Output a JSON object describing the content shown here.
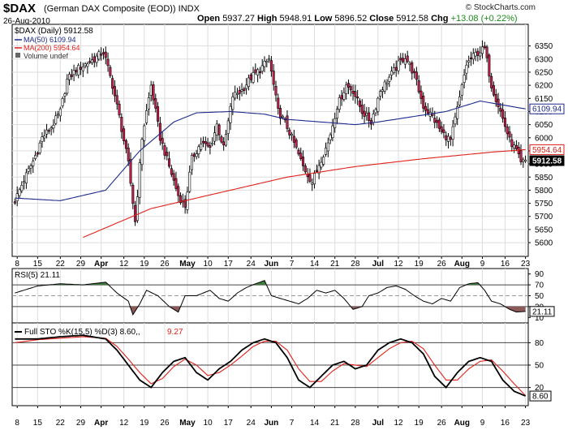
{
  "header": {
    "symbol": "$DAX",
    "name": "(German DAX Composite (EOD))",
    "exchange": "INDX",
    "date": "26-Aug-2010",
    "open_label": "Open",
    "open": "5937.27",
    "high_label": "High",
    "high": "5948.91",
    "low_label": "Low",
    "low": "5896.52",
    "close_label": "Close",
    "close": "5912.58",
    "chg_label": "Chg",
    "chg": "+13.08 (+0.22%)",
    "credit": "© StockCharts.com"
  },
  "colors": {
    "up": "#ffffff",
    "down": "#cc1f4f",
    "ma50": "#1c2a8c",
    "ma200": "#e0201a",
    "rsi_over": "#3f7a3f",
    "rsi_under": "#8c5a58",
    "sto_k": "#000000",
    "sto_d": "#e0201a",
    "grid": "#dddddd"
  },
  "chart_data": [
    {
      "type": "candlestick",
      "title": "$DAX (Daily) 5912.58",
      "legend": [
        {
          "name": "MA(50)",
          "value": "6109.94"
        },
        {
          "name": "MA(200)",
          "value": "5954.64"
        },
        {
          "name": "Volume",
          "value": "undef"
        }
      ],
      "ylim": [
        5560,
        6420
      ],
      "y_ticks": [
        5600,
        5650,
        5700,
        5750,
        5800,
        5850,
        5900,
        5950,
        6000,
        6050,
        6100,
        6150,
        6200,
        6250,
        6300,
        6350
      ],
      "price_tags": [
        {
          "value": 6109.94,
          "label": "6109.94"
        },
        {
          "value": 5954.64,
          "label": "5954.64"
        },
        {
          "value": 5912.58,
          "label": "5912.58"
        }
      ],
      "x_ticks": [
        "8",
        "15",
        "22",
        "29",
        "Apr",
        "12",
        "19",
        "26",
        "May",
        "10",
        "17",
        "24",
        "Jun",
        "7",
        "14",
        "21",
        "28",
        "Jul",
        "12",
        "19",
        "26",
        "Aug",
        "9",
        "16",
        "23"
      ],
      "x_tick_dates": [
        "2010-03-08",
        "2010-03-15",
        "2010-03-22",
        "2010-03-29",
        "2010-04-05",
        "2010-04-12",
        "2010-04-19",
        "2010-04-26",
        "2010-05-03",
        "2010-05-10",
        "2010-05-17",
        "2010-05-24",
        "2010-05-31",
        "2010-06-07",
        "2010-06-14",
        "2010-06-21",
        "2010-06-28",
        "2010-07-05",
        "2010-07-12",
        "2010-07-19",
        "2010-07-26",
        "2010-08-02",
        "2010-08-09",
        "2010-08-16",
        "2010-08-23"
      ],
      "close_path": [
        [
          0,
          5760
        ],
        [
          4,
          5840
        ],
        [
          8,
          5910
        ],
        [
          12,
          6000
        ],
        [
          16,
          6040
        ],
        [
          20,
          6100
        ],
        [
          23,
          6220
        ],
        [
          27,
          6260
        ],
        [
          31,
          6280
        ],
        [
          35,
          6300
        ],
        [
          39,
          6330
        ],
        [
          43,
          6200
        ],
        [
          46,
          6080
        ],
        [
          50,
          5900
        ],
        [
          53,
          5680
        ],
        [
          56,
          6000
        ],
        [
          60,
          6200
        ],
        [
          64,
          6000
        ],
        [
          68,
          5890
        ],
        [
          72,
          5780
        ],
        [
          75,
          5740
        ],
        [
          78,
          5920
        ],
        [
          82,
          5980
        ],
        [
          86,
          5960
        ],
        [
          89,
          6050
        ],
        [
          92,
          5960
        ],
        [
          96,
          6160
        ],
        [
          100,
          6180
        ],
        [
          104,
          6230
        ],
        [
          108,
          6260
        ],
        [
          112,
          6300
        ],
        [
          116,
          6100
        ],
        [
          119,
          6060
        ],
        [
          123,
          5980
        ],
        [
          127,
          5890
        ],
        [
          131,
          5830
        ],
        [
          134,
          5900
        ],
        [
          138,
          5980
        ],
        [
          142,
          6120
        ],
        [
          146,
          6200
        ],
        [
          149,
          6180
        ],
        [
          153,
          6100
        ],
        [
          157,
          6060
        ],
        [
          161,
          6180
        ],
        [
          165,
          6230
        ],
        [
          169,
          6280
        ],
        [
          172,
          6310
        ],
        [
          176,
          6240
        ],
        [
          180,
          6120
        ],
        [
          184,
          6080
        ],
        [
          188,
          6020
        ],
        [
          192,
          5990
        ],
        [
          196,
          6150
        ],
        [
          199,
          6280
        ],
        [
          203,
          6320
        ],
        [
          207,
          6340
        ],
        [
          210,
          6200
        ],
        [
          214,
          6100
        ],
        [
          218,
          5990
        ],
        [
          221,
          5950
        ],
        [
          223,
          5900
        ],
        [
          225,
          5912.58
        ]
      ],
      "ma50_path": [
        [
          0,
          5770
        ],
        [
          20,
          5760
        ],
        [
          40,
          5800
        ],
        [
          55,
          5950
        ],
        [
          70,
          6060
        ],
        [
          80,
          6095
        ],
        [
          95,
          6100
        ],
        [
          110,
          6090
        ],
        [
          120,
          6070
        ],
        [
          135,
          6060
        ],
        [
          150,
          6050
        ],
        [
          160,
          6060
        ],
        [
          175,
          6080
        ],
        [
          190,
          6100
        ],
        [
          205,
          6140
        ],
        [
          215,
          6125
        ],
        [
          225,
          6109.94
        ]
      ],
      "ma200_path": [
        [
          30,
          5620
        ],
        [
          60,
          5730
        ],
        [
          90,
          5790
        ],
        [
          120,
          5850
        ],
        [
          150,
          5890
        ],
        [
          180,
          5920
        ],
        [
          210,
          5945
        ],
        [
          225,
          5954.64
        ]
      ]
    },
    {
      "type": "line",
      "title": "RSI(5) 21.11",
      "ylim": [
        0,
        100
      ],
      "y_ticks": [
        10,
        30,
        50,
        70,
        90
      ],
      "ref_lines": [
        30,
        70
      ],
      "last_value": "21.11",
      "path": [
        [
          0,
          55
        ],
        [
          10,
          68
        ],
        [
          20,
          72
        ],
        [
          30,
          70
        ],
        [
          40,
          75
        ],
        [
          45,
          55
        ],
        [
          50,
          40
        ],
        [
          52,
          15
        ],
        [
          55,
          35
        ],
        [
          58,
          60
        ],
        [
          63,
          50
        ],
        [
          68,
          30
        ],
        [
          72,
          20
        ],
        [
          75,
          50
        ],
        [
          80,
          50
        ],
        [
          86,
          60
        ],
        [
          90,
          45
        ],
        [
          94,
          40
        ],
        [
          98,
          55
        ],
        [
          102,
          65
        ],
        [
          106,
          72
        ],
        [
          110,
          78
        ],
        [
          113,
          50
        ],
        [
          117,
          45
        ],
        [
          121,
          40
        ],
        [
          125,
          35
        ],
        [
          129,
          45
        ],
        [
          133,
          60
        ],
        [
          137,
          55
        ],
        [
          141,
          60
        ],
        [
          145,
          45
        ],
        [
          149,
          25
        ],
        [
          153,
          30
        ],
        [
          156,
          50
        ],
        [
          160,
          55
        ],
        [
          164,
          65
        ],
        [
          168,
          68
        ],
        [
          172,
          62
        ],
        [
          176,
          50
        ],
        [
          180,
          40
        ],
        [
          184,
          35
        ],
        [
          188,
          45
        ],
        [
          192,
          40
        ],
        [
          196,
          65
        ],
        [
          200,
          72
        ],
        [
          204,
          74
        ],
        [
          207,
          60
        ],
        [
          210,
          40
        ],
        [
          214,
          35
        ],
        [
          218,
          25
        ],
        [
          221,
          20
        ],
        [
          225,
          21.11
        ]
      ]
    },
    {
      "type": "line",
      "title": "Full STO %K(15,5) %D(3) 8.60, 9.27",
      "series": [
        {
          "name": "%K(15,5)",
          "value": "8.60"
        },
        {
          "name": "%D(3)",
          "value": "9.27"
        }
      ],
      "ylim": [
        0,
        100
      ],
      "y_ticks": [
        20,
        50,
        80
      ],
      "ref_lines": [
        20,
        50,
        80
      ],
      "last_value": "8.60",
      "k_path": [
        [
          0,
          85
        ],
        [
          10,
          85
        ],
        [
          20,
          88
        ],
        [
          30,
          90
        ],
        [
          40,
          85
        ],
        [
          45,
          70
        ],
        [
          50,
          50
        ],
        [
          55,
          30
        ],
        [
          60,
          20
        ],
        [
          65,
          40
        ],
        [
          70,
          55
        ],
        [
          75,
          60
        ],
        [
          80,
          40
        ],
        [
          85,
          30
        ],
        [
          90,
          45
        ],
        [
          95,
          55
        ],
        [
          100,
          70
        ],
        [
          105,
          80
        ],
        [
          110,
          85
        ],
        [
          115,
          80
        ],
        [
          120,
          60
        ],
        [
          125,
          30
        ],
        [
          130,
          20
        ],
        [
          135,
          35
        ],
        [
          140,
          50
        ],
        [
          145,
          55
        ],
        [
          150,
          45
        ],
        [
          155,
          50
        ],
        [
          160,
          70
        ],
        [
          165,
          80
        ],
        [
          170,
          85
        ],
        [
          175,
          80
        ],
        [
          180,
          65
        ],
        [
          185,
          35
        ],
        [
          190,
          20
        ],
        [
          195,
          40
        ],
        [
          200,
          55
        ],
        [
          205,
          60
        ],
        [
          210,
          55
        ],
        [
          215,
          30
        ],
        [
          220,
          15
        ],
        [
          225,
          8.6
        ]
      ],
      "d_path": [
        [
          0,
          80
        ],
        [
          10,
          84
        ],
        [
          20,
          86
        ],
        [
          30,
          88
        ],
        [
          40,
          86
        ],
        [
          45,
          75
        ],
        [
          50,
          58
        ],
        [
          55,
          40
        ],
        [
          60,
          25
        ],
        [
          65,
          32
        ],
        [
          70,
          48
        ],
        [
          75,
          58
        ],
        [
          80,
          50
        ],
        [
          85,
          36
        ],
        [
          90,
          40
        ],
        [
          95,
          50
        ],
        [
          100,
          62
        ],
        [
          105,
          75
        ],
        [
          110,
          82
        ],
        [
          115,
          82
        ],
        [
          120,
          70
        ],
        [
          125,
          45
        ],
        [
          130,
          28
        ],
        [
          135,
          28
        ],
        [
          140,
          42
        ],
        [
          145,
          52
        ],
        [
          150,
          50
        ],
        [
          155,
          48
        ],
        [
          160,
          60
        ],
        [
          165,
          72
        ],
        [
          170,
          80
        ],
        [
          175,
          82
        ],
        [
          180,
          72
        ],
        [
          185,
          50
        ],
        [
          190,
          30
        ],
        [
          195,
          30
        ],
        [
          200,
          45
        ],
        [
          205,
          55
        ],
        [
          210,
          57
        ],
        [
          215,
          42
        ],
        [
          220,
          25
        ],
        [
          225,
          9.27
        ]
      ]
    }
  ]
}
